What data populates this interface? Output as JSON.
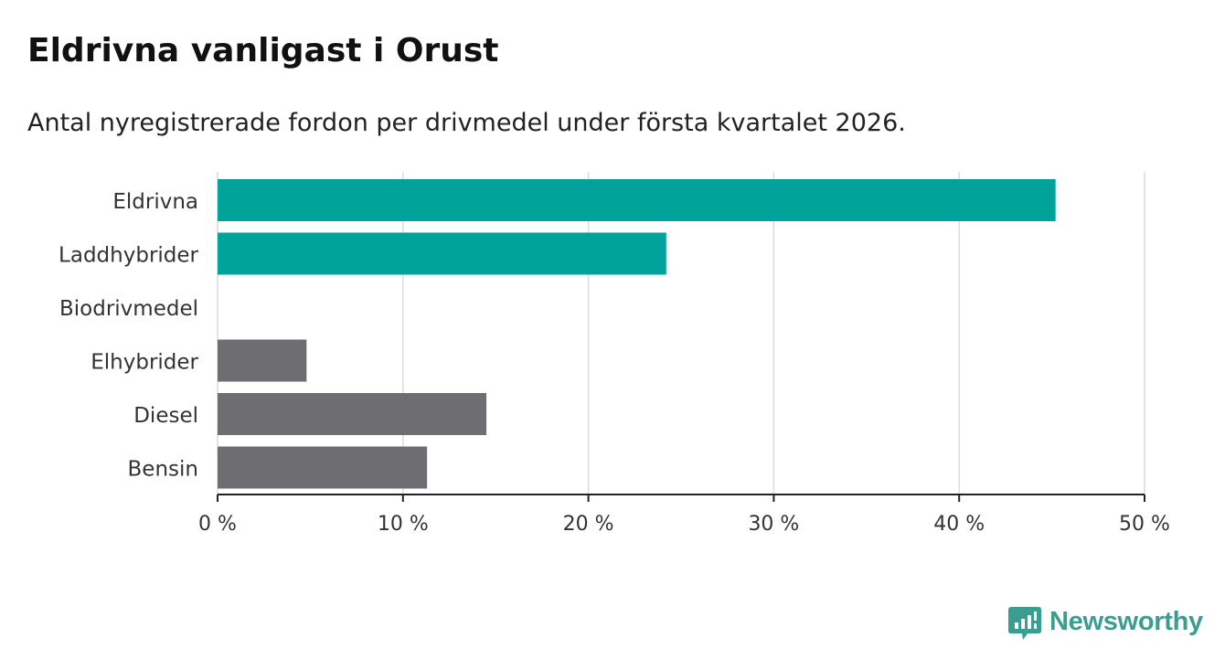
{
  "header": {
    "title": "Eldrivna vanligast i Orust",
    "subtitle": "Antal nyregistrerade fordon per drivmedel under första kvartalet 2026."
  },
  "chart_data": {
    "type": "bar",
    "orientation": "horizontal",
    "categories": [
      "Eldrivna",
      "Laddhybrider",
      "Biodrivmedel",
      "Elhybrider",
      "Diesel",
      "Bensin"
    ],
    "values": [
      45.2,
      24.2,
      0,
      4.8,
      14.5,
      11.3
    ],
    "colors": [
      "#00a39a",
      "#00a39a",
      "#00a39a",
      "#6e6d72",
      "#6e6d72",
      "#6e6d72"
    ],
    "xlim": [
      0,
      50
    ],
    "xticks": [
      0,
      10,
      20,
      30,
      40,
      50
    ],
    "xtick_labels": [
      "0 %",
      "10 %",
      "20 %",
      "30 %",
      "40 %",
      "50 %"
    ],
    "xlabel": "",
    "ylabel": "",
    "unit": "%",
    "grid": true,
    "title": "Eldrivna vanligast i Orust",
    "subtitle": "Antal nyregistrerade fordon per drivmedel under första kvartalet 2026."
  },
  "footer": {
    "brand": "Newsworthy",
    "brand_color": "#3a9d8f"
  }
}
